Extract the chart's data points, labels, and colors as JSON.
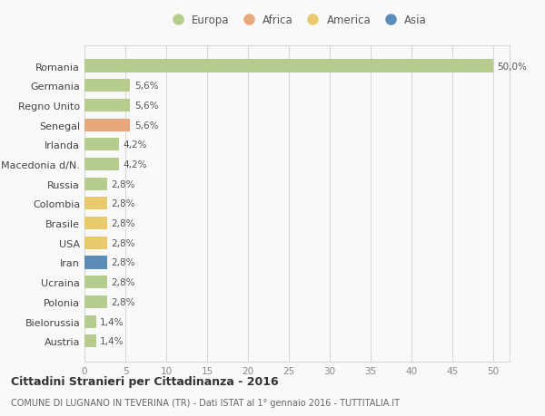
{
  "categories": [
    "Romania",
    "Germania",
    "Regno Unito",
    "Senegal",
    "Irlanda",
    "Macedonia d/N.",
    "Russia",
    "Colombia",
    "Brasile",
    "USA",
    "Iran",
    "Ucraina",
    "Polonia",
    "Bielorussia",
    "Austria"
  ],
  "values": [
    50.0,
    5.6,
    5.6,
    5.6,
    4.2,
    4.2,
    2.8,
    2.8,
    2.8,
    2.8,
    2.8,
    2.8,
    2.8,
    1.4,
    1.4
  ],
  "colors": [
    "#b5cc8e",
    "#b5cc8e",
    "#b5cc8e",
    "#e8a87c",
    "#b5cc8e",
    "#b5cc8e",
    "#b5cc8e",
    "#e8c96e",
    "#e8c96e",
    "#e8c96e",
    "#5b8db8",
    "#b5cc8e",
    "#b5cc8e",
    "#b5cc8e",
    "#b5cc8e"
  ],
  "labels": [
    "50,0%",
    "5,6%",
    "5,6%",
    "5,6%",
    "4,2%",
    "4,2%",
    "2,8%",
    "2,8%",
    "2,8%",
    "2,8%",
    "2,8%",
    "2,8%",
    "2,8%",
    "1,4%",
    "1,4%"
  ],
  "legend_labels": [
    "Europa",
    "Africa",
    "America",
    "Asia"
  ],
  "legend_colors": [
    "#b5cc8e",
    "#e8a87c",
    "#e8c96e",
    "#5b8db8"
  ],
  "xlim": [
    0,
    52
  ],
  "xticks": [
    0,
    5,
    10,
    15,
    20,
    25,
    30,
    35,
    40,
    45,
    50
  ],
  "title1": "Cittadini Stranieri per Cittadinanza - 2016",
  "title2": "COMUNE DI LUGNANO IN TEVERINA (TR) - Dati ISTAT al 1° gennaio 2016 - TUTTITALIA.IT",
  "background_color": "#f9f9f9",
  "grid_color": "#d8d8d8",
  "bar_height": 0.65,
  "figwidth": 6.0,
  "figheight": 4.6,
  "dpi": 100
}
